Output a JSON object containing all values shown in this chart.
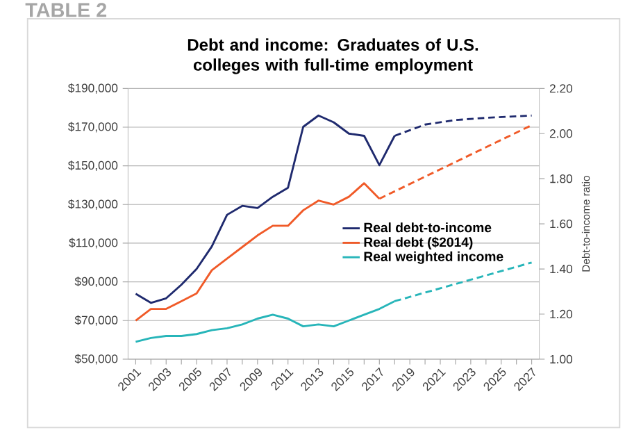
{
  "chart_data": {
    "type": "line",
    "title": "Debt and income: Graduates of U.S. colleges with full-time employment",
    "y2label": "Debt-to-income ratio",
    "annotations": [
      "TABLE 2"
    ],
    "xlim": [
      2000.5,
      2027.5
    ],
    "xticks": [
      2001,
      {
        "value": 2002,
        "label": null
      },
      2003,
      {
        "value": 2004,
        "label": null
      },
      2005,
      {
        "value": 2006,
        "label": null
      },
      2007,
      {
        "value": 2008,
        "label": null
      },
      2009,
      {
        "value": 2010,
        "label": null
      },
      2011,
      {
        "value": 2012,
        "label": null
      },
      2013,
      {
        "value": 2014,
        "label": null
      },
      2015,
      {
        "value": 2016,
        "label": null
      },
      2017,
      {
        "value": 2018,
        "label": null
      },
      2019,
      {
        "value": 2020,
        "label": null
      },
      2021,
      {
        "value": 2022,
        "label": null
      },
      2023,
      {
        "value": 2024,
        "label": null
      },
      2025,
      {
        "value": 2026,
        "label": null
      },
      2027
    ],
    "ylim": [
      50000,
      190000
    ],
    "yticks": [
      {
        "value": 50000,
        "label": "$50,000"
      },
      {
        "value": 70000,
        "label": "$70,000"
      },
      {
        "value": 90000,
        "label": "$90,000"
      },
      {
        "value": 110000,
        "label": "$110,000"
      },
      {
        "value": 130000,
        "label": "$130,000"
      },
      {
        "value": 150000,
        "label": "$150,000"
      },
      {
        "value": 170000,
        "label": "$170,000"
      },
      {
        "value": 190000,
        "label": "$190,000"
      }
    ],
    "y2lim": [
      1.0,
      2.2
    ],
    "y2ticks": [
      {
        "value": 1.0,
        "label": "1.00"
      },
      {
        "value": 1.2,
        "label": "1.20"
      },
      {
        "value": 1.4,
        "label": "1.40"
      },
      {
        "value": 1.6,
        "label": "1.60"
      },
      {
        "value": 1.8,
        "label": "1.80"
      },
      {
        "value": 2.0,
        "label": "2.00"
      },
      {
        "value": 2.2,
        "label": "2.20"
      }
    ],
    "grid": "y",
    "legend": "right",
    "marker": "none",
    "series": [
      {
        "name": "Real debt-to-income",
        "color": "#1f2a6e",
        "axis": "y2",
        "line_style": "solid",
        "x": [
          2001,
          2002,
          2003,
          2004,
          2005,
          2006,
          2007,
          2008,
          2009,
          2010,
          2011,
          2012,
          2013,
          2014,
          2015,
          2016,
          2017,
          2018
        ],
        "values": [
          1.29,
          1.25,
          1.27,
          1.33,
          1.4,
          1.5,
          1.64,
          1.68,
          1.67,
          1.72,
          1.76,
          2.03,
          2.08,
          2.05,
          2.0,
          1.99,
          1.86,
          1.99
        ]
      },
      {
        "color": "#1f2a6e",
        "axis": "y2",
        "line_style": "dashed",
        "x": [
          2018,
          2020,
          2022,
          2024,
          2027
        ],
        "values": [
          1.99,
          2.04,
          2.06,
          2.07,
          2.08
        ]
      },
      {
        "name": "Real debt ($2014)",
        "color": "#f05a28",
        "axis": "y",
        "line_style": "solid",
        "x": [
          2001,
          2002,
          2003,
          2004,
          2005,
          2006,
          2007,
          2008,
          2009,
          2010,
          2011,
          2012,
          2013,
          2014,
          2015,
          2016,
          2017
        ],
        "values": [
          70000,
          76000,
          76000,
          80000,
          84000,
          96000,
          102000,
          108000,
          114000,
          119000,
          119000,
          127000,
          132000,
          130000,
          134000,
          141000,
          133000
        ]
      },
      {
        "color": "#f05a28",
        "axis": "y",
        "line_style": "dashed",
        "x": [
          2017,
          2027
        ],
        "values": [
          133000,
          171000
        ]
      },
      {
        "name": "Real weighted income",
        "color": "#27b5b9",
        "axis": "y",
        "line_style": "solid",
        "x": [
          2001,
          2002,
          2003,
          2004,
          2005,
          2006,
          2007,
          2008,
          2009,
          2010,
          2011,
          2012,
          2013,
          2014,
          2015,
          2016,
          2017,
          2018
        ],
        "values": [
          59000,
          61000,
          62000,
          62000,
          63000,
          65000,
          66000,
          68000,
          71000,
          73000,
          71000,
          67000,
          68000,
          67000,
          70000,
          73000,
          76000,
          80000
        ]
      },
      {
        "color": "#27b5b9",
        "axis": "y",
        "line_style": "dashed",
        "x": [
          2018,
          2027
        ],
        "values": [
          80000,
          100000
        ]
      }
    ]
  }
}
